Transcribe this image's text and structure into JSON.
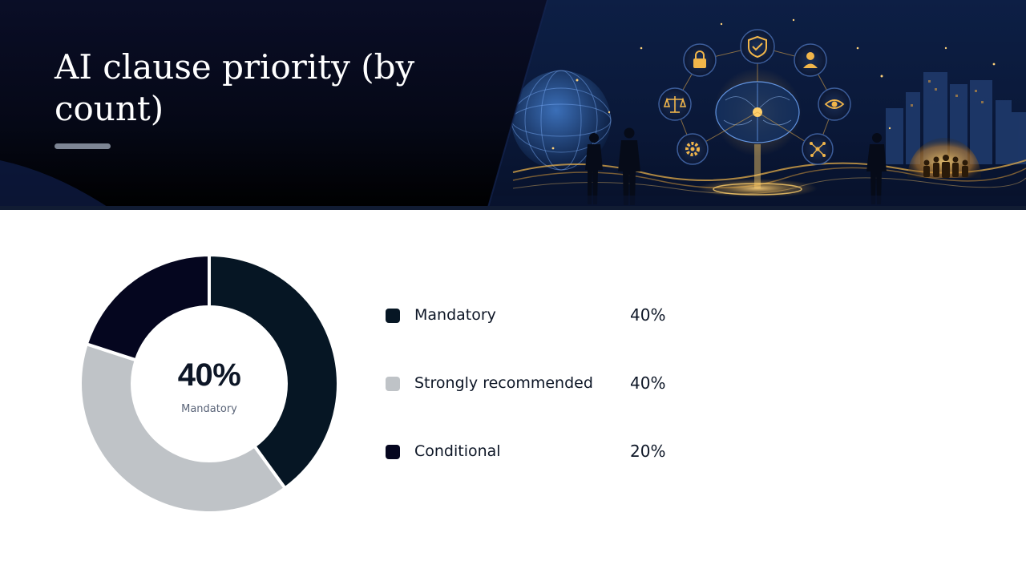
{
  "slide": {
    "title": "AI clause priority (by count)"
  },
  "chart_data": {
    "type": "pie",
    "variant": "donut",
    "categories": [
      "Mandatory",
      "Strongly recommended",
      "Conditional"
    ],
    "values": [
      40,
      40,
      20
    ],
    "value_labels": [
      "40%",
      "40%",
      "20%"
    ],
    "colors": [
      "#061624",
      "#bfc3c7",
      "#05061f"
    ],
    "center": {
      "value": "40%",
      "label": "Mandatory"
    },
    "legend_position": "right"
  },
  "colors": {
    "header_dark": "#050816",
    "text_primary": "#0d1626",
    "text_muted": "#5a6478",
    "accent_gold": "#f2b64a"
  },
  "header_image": {
    "icons": [
      "lock-icon",
      "shield-check-icon",
      "user-icon",
      "scales-icon",
      "eye-icon",
      "gear-icon",
      "network-icon",
      "brain-icon",
      "globe-icon"
    ]
  }
}
